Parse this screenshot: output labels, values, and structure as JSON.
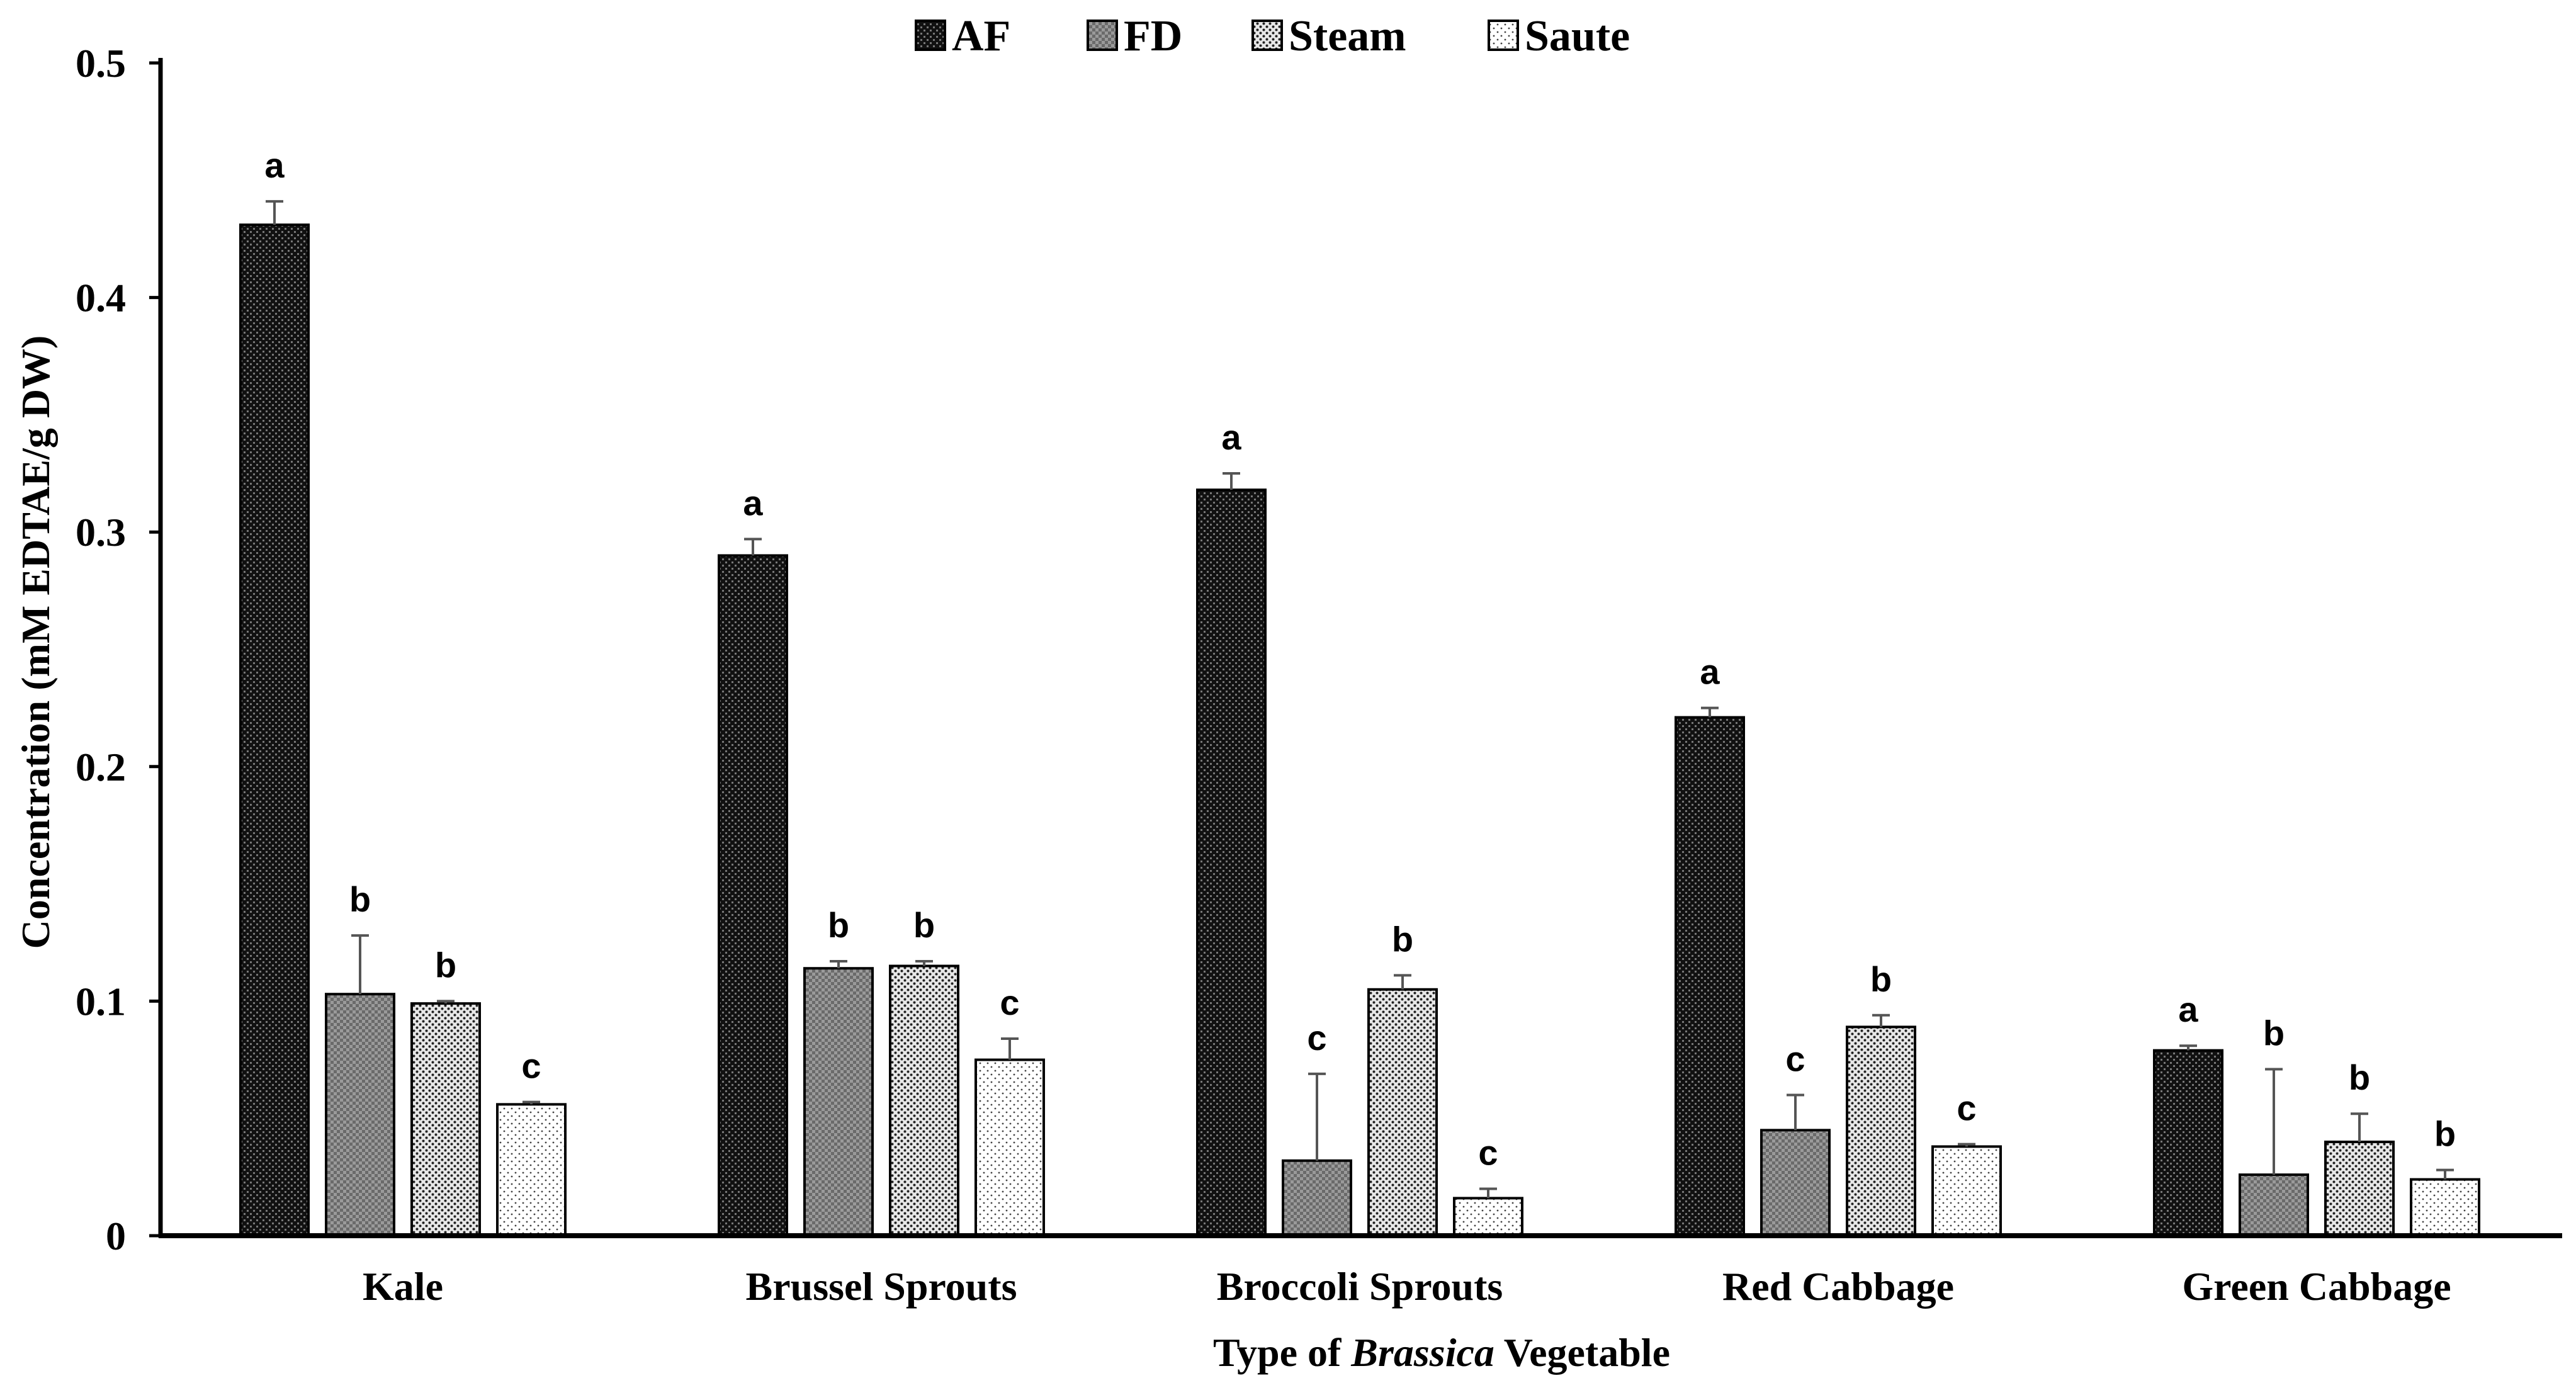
{
  "chart_data": {
    "type": "bar",
    "title": "",
    "ylabel": "Concentration (mM EDTAE/g DW)",
    "xlabel_prefix": "Type of ",
    "xlabel_italic": "Brassica",
    "xlabel_suffix": " Vegetable",
    "ylim": [
      0,
      0.5
    ],
    "yticks": [
      "0",
      "0.1",
      "0.2",
      "0.3",
      "0.4",
      "0.5"
    ],
    "ytick_values": [
      0,
      0.1,
      0.2,
      0.3,
      0.4,
      0.5
    ],
    "categories": [
      "Kale",
      "Brussel Sprouts",
      "Broccoli Sprouts",
      "Red Cabbage",
      "Green Cabbage"
    ],
    "legend_position": "top-center",
    "series": [
      {
        "name": "AF",
        "pattern": "dense-dark",
        "values": [
          0.431,
          0.29,
          0.318,
          0.221,
          0.079
        ],
        "errors": [
          0.01,
          0.007,
          0.007,
          0.004,
          0.002
        ],
        "letters": [
          "a",
          "a",
          "a",
          "a",
          "a"
        ]
      },
      {
        "name": "FD",
        "pattern": "checker-gray",
        "values": [
          0.103,
          0.114,
          0.032,
          0.045,
          0.026
        ],
        "errors": [
          0.025,
          0.003,
          0.037,
          0.015,
          0.045
        ],
        "letters": [
          "b",
          "b",
          "c",
          "c",
          "b"
        ]
      },
      {
        "name": "Steam",
        "pattern": "dots-dense",
        "values": [
          0.099,
          0.115,
          0.105,
          0.089,
          0.04
        ],
        "errors": [
          0.001,
          0.002,
          0.006,
          0.005,
          0.012
        ],
        "letters": [
          "b",
          "b",
          "b",
          "b",
          "b"
        ]
      },
      {
        "name": "Saute",
        "pattern": "dots-sparse",
        "values": [
          0.056,
          0.075,
          0.016,
          0.038,
          0.024
        ],
        "errors": [
          0.001,
          0.009,
          0.004,
          0.001,
          0.004
        ],
        "letters": [
          "c",
          "c",
          "c",
          "c",
          "b"
        ]
      }
    ]
  }
}
